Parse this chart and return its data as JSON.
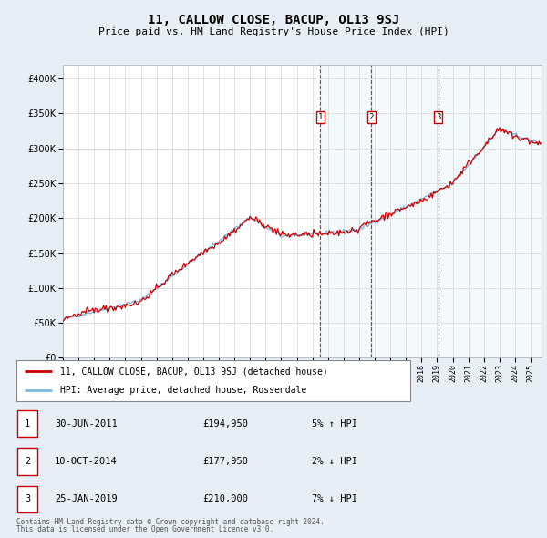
{
  "title": "11, CALLOW CLOSE, BACUP, OL13 9SJ",
  "subtitle": "Price paid vs. HM Land Registry's House Price Index (HPI)",
  "legend_line1": "11, CALLOW CLOSE, BACUP, OL13 9SJ (detached house)",
  "legend_line2": "HPI: Average price, detached house, Rossendale",
  "footer_line1": "Contains HM Land Registry data © Crown copyright and database right 2024.",
  "footer_line2": "This data is licensed under the Open Government Licence v3.0.",
  "transactions": [
    {
      "num": 1,
      "date": "30-JUN-2011",
      "price": "£194,950",
      "pct": "5%",
      "dir": "↑"
    },
    {
      "num": 2,
      "date": "10-OCT-2014",
      "price": "£177,950",
      "pct": "2%",
      "dir": "↓"
    },
    {
      "num": 3,
      "date": "25-JAN-2019",
      "price": "£210,000",
      "pct": "7%",
      "dir": "↓"
    }
  ],
  "transaction_dates_decimal": [
    2011.5,
    2014.77,
    2019.07
  ],
  "hpi_color": "#7ab8e0",
  "price_color": "#cc0000",
  "vline_color": "#cc0000",
  "background_color": "#e8eef5",
  "plot_bg": "#ffffff",
  "ylim": [
    0,
    420000
  ],
  "yticks": [
    0,
    50000,
    100000,
    150000,
    200000,
    250000,
    300000,
    350000,
    400000
  ],
  "xstart": 1995.0,
  "xend": 2025.7
}
